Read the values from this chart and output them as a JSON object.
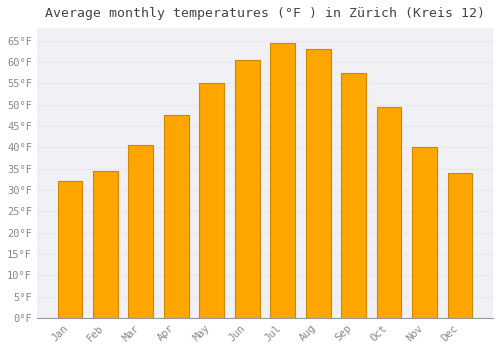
{
  "title": "Average monthly temperatures (°F ) in Zürich (Kreis 12)",
  "months": [
    "Jan",
    "Feb",
    "Mar",
    "Apr",
    "May",
    "Jun",
    "Jul",
    "Aug",
    "Sep",
    "Oct",
    "Nov",
    "Dec"
  ],
  "values": [
    32,
    34.5,
    40.5,
    47.5,
    55,
    60.5,
    64.5,
    63,
    57.5,
    49.5,
    40,
    34
  ],
  "bar_color": "#FFA500",
  "bar_edge_color": "#CC8800",
  "background_color": "#ffffff",
  "plot_bg_color": "#f0f0f5",
  "grid_color": "#e8e8ee",
  "tick_label_color": "#888888",
  "title_color": "#444444",
  "ylim": [
    0,
    68
  ],
  "yticks": [
    0,
    5,
    10,
    15,
    20,
    25,
    30,
    35,
    40,
    45,
    50,
    55,
    60,
    65
  ],
  "ytick_labels": [
    "0°F",
    "5°F",
    "10°F",
    "15°F",
    "20°F",
    "25°F",
    "30°F",
    "35°F",
    "40°F",
    "45°F",
    "50°F",
    "55°F",
    "60°F",
    "65°F"
  ],
  "title_fontsize": 9.5,
  "tick_fontsize": 7.5,
  "bar_width": 0.7,
  "figsize": [
    5.0,
    3.5
  ],
  "dpi": 100
}
